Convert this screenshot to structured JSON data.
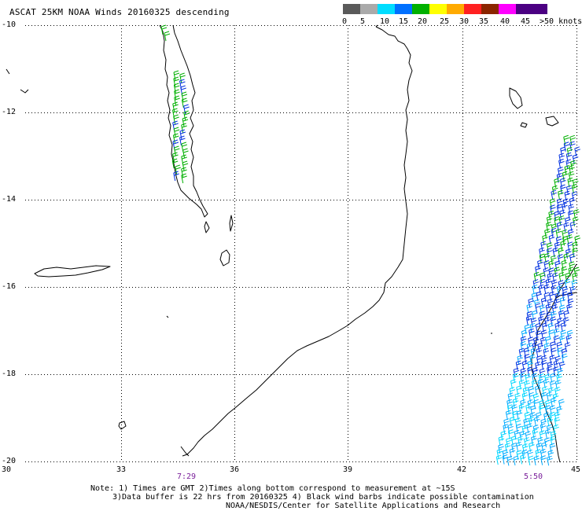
{
  "title": "ASCAT 25KM NOAA Winds 20160325 descending",
  "legend": {
    "labels": [
      "0",
      "5",
      "10",
      "15",
      "20",
      "25",
      "30",
      "35",
      "40",
      "45",
      ">50 knots"
    ],
    "colors": [
      "#5a5a5a",
      "#aaaaaa",
      "#00ddff",
      "#0070ff",
      "#00b000",
      "#ffff00",
      "#ffaa00",
      "#ff2020",
      "#8b2500",
      "#ff00ff",
      "#4b0082"
    ]
  },
  "map": {
    "lat_ticks": [
      "-10",
      "-12",
      "-14",
      "-16",
      "-18",
      "-20"
    ],
    "lon_ticks": [
      "30",
      "33",
      "36",
      "39",
      "42",
      "45"
    ],
    "pass_times": [
      "7:29",
      "5:50"
    ],
    "barb_colors": [
      "#00b000",
      "#0030e0",
      "#00aaff",
      "#00d8ff"
    ]
  },
  "notes": {
    "line1": "Note: 1) Times are GMT 2)Times along bottom correspond to measurement at ~15S",
    "line2": "3)Data buffer is 22 hrs from 20160325 4) Black wind barbs indicate possible contamination",
    "line3": "NOAA/NESDIS/Center for Satellite Applications and Research"
  }
}
